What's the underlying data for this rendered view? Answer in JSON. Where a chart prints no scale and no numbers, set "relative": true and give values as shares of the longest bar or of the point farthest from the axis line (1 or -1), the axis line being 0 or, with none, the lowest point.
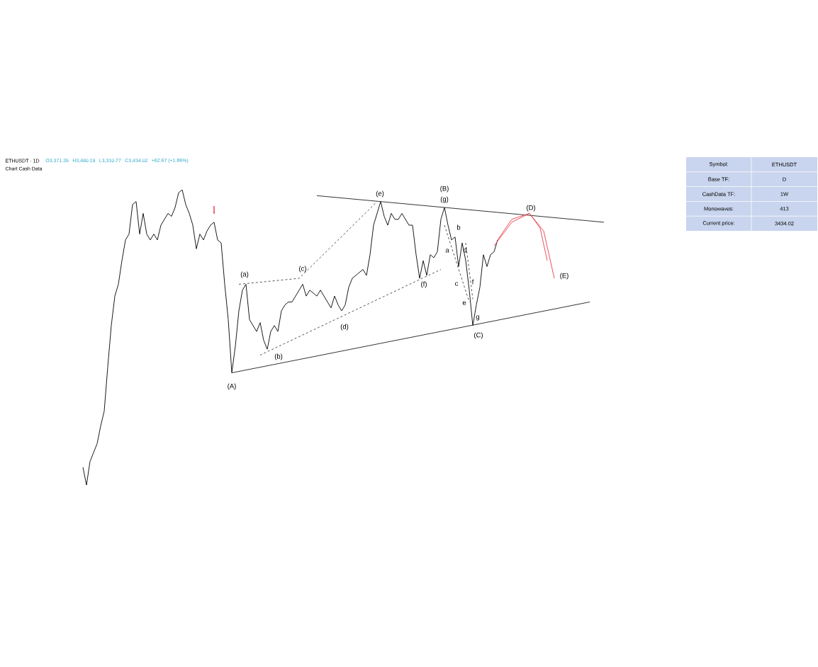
{
  "chart_data": {
    "type": "line",
    "relative": true,
    "title": "ETHUSDT · 1D",
    "subtitle": "Chart Cash Data",
    "categories": [
      null,
      null,
      null,
      null,
      null,
      null,
      null,
      null,
      null,
      null,
      null,
      null,
      null,
      null,
      null,
      null,
      null,
      null,
      null,
      null,
      null,
      null,
      null,
      null,
      null,
      null,
      null,
      null,
      null,
      null,
      null,
      null,
      null,
      null,
      null,
      null,
      null,
      null,
      null,
      null,
      null,
      null,
      null,
      null,
      null,
      null,
      null,
      null,
      null,
      null,
      null,
      null,
      null,
      null,
      null,
      null,
      null,
      null,
      null,
      null,
      null,
      null,
      null,
      null,
      null,
      null,
      null,
      null,
      null,
      null,
      null,
      null,
      null,
      null,
      null,
      null,
      null,
      null,
      null,
      null,
      null,
      null,
      null,
      null,
      null,
      null,
      null,
      null,
      null,
      null,
      null,
      null,
      null,
      null,
      null,
      null,
      null,
      null,
      null,
      null,
      null,
      null,
      null,
      null,
      null,
      null,
      null,
      null,
      null,
      null,
      null,
      null,
      null,
      null,
      null,
      null,
      null,
      null,
      null,
      null,
      null,
      null,
      null,
      null,
      null,
      null,
      null,
      null,
      null,
      null,
      null,
      null,
      null,
      null,
      null,
      null,
      null,
      null,
      null,
      null,
      null,
      null,
      null,
      null,
      null,
      null,
      null,
      null
    ],
    "series": [
      {
        "color": "#1a1a1a",
        "values": [
          0.06,
          0,
          0.08,
          0.11,
          0.14,
          0.2,
          0.25,
          0.4,
          0.54,
          0.64,
          0.68,
          0.76,
          0.83,
          0.85,
          0.95,
          0.96,
          0.85,
          0.92,
          0.85,
          0.83,
          0.85,
          0.83,
          0.88,
          0.9,
          0.92,
          0.91,
          0.94,
          0.99,
          1,
          0.95,
          0.92,
          0.88,
          0.8,
          0.85,
          0.83,
          0.86,
          0.88,
          0.89,
          0.83,
          0.82,
          0.68,
          0.56,
          0.38,
          0.47,
          0.59,
          0.66,
          0.68,
          0.56,
          0.54,
          0.52,
          0.55,
          0.49,
          0.46,
          0.52,
          0.54,
          0.52,
          0.59,
          0.61,
          0.62,
          0.62,
          0.64,
          0.66,
          0.68,
          0.64,
          0.66,
          0.65,
          0.64,
          0.66,
          0.64,
          0.62,
          0.6,
          0.64,
          0.61,
          0.59,
          0.61,
          0.67,
          0.7,
          0.71,
          0.72,
          0.73,
          0.71,
          0.78,
          0.88,
          0.92,
          0.96,
          0.91,
          0.88,
          0.92,
          0.9,
          0.9,
          0.92,
          0.9,
          0.88,
          0.88,
          0.78,
          0.7,
          0.76,
          0.71,
          0.78,
          0.77,
          0.79,
          0.9,
          0.94,
          0.88,
          0.83,
          0.84,
          0.74,
          0.82,
          0.76,
          0.66,
          0.54,
          0.61,
          0.67,
          0.78,
          0.74,
          0.78,
          0.79,
          0.83,
          null,
          null,
          null,
          null,
          null,
          null,
          null,
          null,
          null,
          null,
          null,
          null,
          null,
          null,
          null,
          null,
          null,
          null,
          null,
          null,
          null,
          null,
          null,
          null,
          null,
          null,
          null,
          null,
          null,
          null
        ]
      },
      {
        "type": "line",
        "color": "#333333",
        "values": [
          null,
          null,
          null,
          null,
          null,
          null,
          null,
          null,
          null,
          null,
          null,
          null,
          null,
          null,
          null,
          null,
          null,
          null,
          null,
          null,
          null,
          null,
          null,
          null,
          null,
          null,
          null,
          null,
          null,
          null,
          null,
          null,
          null,
          null,
          null,
          null,
          null,
          null,
          null,
          null,
          null,
          null,
          null,
          null,
          null,
          null,
          null,
          null,
          null,
          null,
          null,
          null,
          null,
          null,
          null,
          null,
          null,
          null,
          null,
          null,
          null,
          null,
          null,
          null,
          null,
          null,
          0.98,
          null,
          null,
          null,
          null,
          null,
          null,
          null,
          null,
          null,
          null,
          null,
          null,
          null,
          null,
          null,
          null,
          null,
          null,
          null,
          null,
          null,
          null,
          null,
          null,
          null,
          null,
          null,
          null,
          null,
          null,
          null,
          null,
          null,
          null,
          null,
          null,
          null,
          null,
          null,
          null,
          null,
          null,
          null,
          null,
          null,
          null,
          null,
          null,
          null,
          null,
          null,
          null,
          null,
          null,
          null,
          null,
          null,
          null,
          null,
          null,
          null,
          null,
          null,
          null,
          null,
          null,
          null,
          null,
          null,
          null,
          null,
          null,
          null,
          null,
          null,
          null,
          null,
          null,
          null,
          null,
          0.89
        ]
      },
      {
        "type": "line",
        "color": "#333333",
        "values": [
          null,
          null,
          null,
          null,
          null,
          null,
          null,
          null,
          null,
          null,
          null,
          null,
          null,
          null,
          null,
          null,
          null,
          null,
          null,
          null,
          null,
          null,
          null,
          null,
          null,
          null,
          null,
          null,
          null,
          null,
          null,
          null,
          null,
          null,
          null,
          null,
          null,
          null,
          null,
          null,
          null,
          null,
          0.38,
          null,
          null,
          null,
          null,
          null,
          null,
          null,
          null,
          null,
          null,
          null,
          null,
          null,
          null,
          null,
          null,
          null,
          null,
          null,
          null,
          null,
          null,
          null,
          null,
          null,
          null,
          null,
          null,
          null,
          null,
          null,
          null,
          null,
          null,
          null,
          null,
          null,
          null,
          null,
          null,
          null,
          null,
          null,
          null,
          null,
          null,
          null,
          null,
          null,
          null,
          null,
          null,
          null,
          null,
          null,
          null,
          null,
          null,
          null,
          null,
          null,
          null,
          null,
          null,
          null,
          null,
          null,
          null,
          null,
          null,
          null,
          null,
          null,
          null,
          null,
          null,
          null,
          null,
          null,
          null,
          null,
          null,
          null,
          null,
          null,
          null,
          null,
          null,
          null,
          null,
          null,
          null,
          null,
          null,
          null,
          null,
          null,
          null,
          null,
          null,
          0.62,
          null,
          null,
          null,
          null
        ]
      },
      {
        "type": "line",
        "color": "#555555",
        "line_style": "dashed",
        "values": [
          null,
          null,
          null,
          null,
          null,
          null,
          null,
          null,
          null,
          null,
          null,
          null,
          null,
          null,
          null,
          null,
          null,
          null,
          null,
          null,
          null,
          null,
          null,
          null,
          null,
          null,
          null,
          null,
          null,
          null,
          null,
          null,
          null,
          null,
          null,
          null,
          null,
          null,
          null,
          null,
          null,
          null,
          null,
          null,
          0.68,
          null,
          null,
          null,
          null,
          null,
          null,
          null,
          null,
          null,
          null,
          null,
          null,
          null,
          null,
          null,
          null,
          0.7,
          null,
          null,
          null,
          null,
          null,
          null,
          null,
          null,
          null,
          null,
          null,
          null,
          null,
          null,
          null,
          null,
          null,
          null,
          null,
          null,
          null,
          0.96,
          null,
          null,
          null,
          null,
          null,
          null,
          null,
          null,
          null,
          null,
          null,
          null,
          null,
          null,
          null,
          null,
          null,
          null,
          null,
          null,
          null,
          null,
          null,
          null,
          null,
          null,
          null,
          null,
          null,
          null,
          null,
          null,
          null,
          null,
          null,
          null,
          null,
          null,
          null,
          null,
          null,
          null,
          null,
          null,
          null,
          null,
          null,
          null,
          null,
          null,
          null,
          null,
          null,
          null,
          null,
          null,
          null,
          null,
          null,
          null,
          null,
          null,
          null,
          null
        ]
      },
      {
        "type": "line",
        "color": "#555555",
        "line_style": "dashed",
        "values": [
          null,
          null,
          null,
          null,
          null,
          null,
          null,
          null,
          null,
          null,
          null,
          null,
          null,
          null,
          null,
          null,
          null,
          null,
          null,
          null,
          null,
          null,
          null,
          null,
          null,
          null,
          null,
          null,
          null,
          null,
          null,
          null,
          null,
          null,
          null,
          null,
          null,
          null,
          null,
          null,
          null,
          null,
          null,
          null,
          null,
          null,
          null,
          null,
          null,
          null,
          0.44,
          null,
          null,
          null,
          null,
          null,
          null,
          null,
          null,
          null,
          null,
          null,
          null,
          null,
          null,
          null,
          null,
          null,
          null,
          null,
          null,
          null,
          null,
          null,
          null,
          null,
          null,
          null,
          null,
          null,
          null,
          null,
          null,
          null,
          null,
          null,
          null,
          null,
          null,
          null,
          null,
          null,
          null,
          null,
          null,
          null,
          null,
          null,
          null,
          null,
          null,
          0.73,
          null,
          null,
          null,
          null,
          null,
          null,
          null,
          null,
          null,
          null,
          null,
          null,
          null,
          null,
          null,
          null,
          null,
          null,
          null,
          null,
          null,
          null,
          null,
          null,
          null,
          null,
          null,
          null,
          null,
          null,
          null,
          null,
          null,
          null,
          null,
          null,
          null,
          null,
          null,
          null,
          null,
          null,
          null,
          null,
          null,
          null
        ]
      },
      {
        "type": "line",
        "color": "#555555",
        "line_style": "dashed",
        "values": [
          null,
          null,
          null,
          null,
          null,
          null,
          null,
          null,
          null,
          null,
          null,
          null,
          null,
          null,
          null,
          null,
          null,
          null,
          null,
          null,
          null,
          null,
          null,
          null,
          null,
          null,
          null,
          null,
          null,
          null,
          null,
          null,
          null,
          null,
          null,
          null,
          null,
          null,
          null,
          null,
          null,
          null,
          null,
          null,
          null,
          null,
          null,
          null,
          null,
          null,
          null,
          null,
          null,
          null,
          null,
          null,
          null,
          null,
          null,
          null,
          null,
          null,
          null,
          null,
          null,
          null,
          null,
          null,
          null,
          null,
          null,
          null,
          null,
          null,
          null,
          null,
          null,
          null,
          null,
          null,
          null,
          null,
          null,
          null,
          null,
          null,
          null,
          null,
          null,
          null,
          null,
          null,
          null,
          null,
          null,
          null,
          null,
          null,
          null,
          null,
          null,
          null,
          0.88,
          null,
          null,
          null,
          null,
          null,
          null,
          0.62,
          null,
          null,
          null,
          null,
          null,
          null,
          null,
          null,
          null,
          null,
          null,
          null,
          null,
          null,
          null,
          null,
          null,
          null,
          null,
          null,
          null,
          null,
          null,
          null,
          null,
          null,
          null,
          null,
          null,
          null,
          null,
          null,
          null,
          null,
          null,
          null,
          null,
          null
        ]
      },
      {
        "type": "line",
        "color": "#555555",
        "line_style": "dashed",
        "values": [
          null,
          null,
          null,
          null,
          null,
          null,
          null,
          null,
          null,
          null,
          null,
          null,
          null,
          null,
          null,
          null,
          null,
          null,
          null,
          null,
          null,
          null,
          null,
          null,
          null,
          null,
          null,
          null,
          null,
          null,
          null,
          null,
          null,
          null,
          null,
          null,
          null,
          null,
          null,
          null,
          null,
          null,
          null,
          null,
          null,
          null,
          null,
          null,
          null,
          null,
          null,
          null,
          null,
          null,
          null,
          null,
          null,
          null,
          null,
          null,
          null,
          null,
          null,
          null,
          null,
          null,
          null,
          null,
          null,
          null,
          null,
          null,
          null,
          null,
          null,
          null,
          null,
          null,
          null,
          null,
          null,
          null,
          null,
          null,
          null,
          null,
          null,
          null,
          null,
          null,
          null,
          null,
          null,
          null,
          null,
          null,
          null,
          null,
          null,
          null,
          null,
          null,
          null,
          null,
          null,
          null,
          null,
          null,
          0.82,
          null,
          0.63,
          null,
          null,
          null,
          null,
          null,
          null,
          null,
          null,
          null,
          null,
          null,
          null,
          null,
          null,
          null,
          null,
          null,
          null,
          null,
          null,
          null,
          null,
          null,
          null,
          null,
          null,
          null,
          null,
          null,
          null,
          null,
          null,
          null,
          null,
          null,
          null,
          null
        ]
      },
      {
        "type": "line",
        "color": "#e8505b",
        "values": [
          null,
          null,
          null,
          null,
          null,
          null,
          null,
          null,
          null,
          null,
          null,
          null,
          null,
          null,
          null,
          null,
          null,
          null,
          null,
          null,
          null,
          null,
          null,
          null,
          null,
          null,
          null,
          null,
          null,
          null,
          null,
          null,
          null,
          null,
          null,
          null,
          null,
          null,
          null,
          null,
          null,
          null,
          null,
          null,
          null,
          null,
          null,
          null,
          null,
          null,
          null,
          null,
          null,
          null,
          null,
          null,
          null,
          null,
          null,
          null,
          null,
          null,
          null,
          null,
          null,
          null,
          null,
          null,
          null,
          null,
          null,
          null,
          null,
          null,
          null,
          null,
          null,
          null,
          null,
          null,
          null,
          null,
          null,
          null,
          null,
          null,
          null,
          null,
          null,
          null,
          null,
          null,
          null,
          null,
          null,
          null,
          null,
          null,
          null,
          null,
          null,
          null,
          null,
          null,
          null,
          null,
          null,
          null,
          null,
          null,
          null,
          null,
          null,
          null,
          null,
          null,
          null,
          0.83,
          null,
          null,
          null,
          0.9,
          null,
          null,
          null,
          null,
          0.92,
          null,
          null,
          null,
          0.86,
          null,
          null,
          0.7,
          null,
          null,
          null,
          null,
          null,
          null,
          null,
          null,
          null,
          null,
          null,
          null,
          null,
          null
        ]
      },
      {
        "type": "line",
        "color": "#e8505b",
        "values": [
          null,
          null,
          null,
          null,
          null,
          null,
          null,
          null,
          null,
          null,
          null,
          null,
          null,
          null,
          null,
          null,
          null,
          null,
          null,
          null,
          null,
          null,
          null,
          null,
          null,
          null,
          null,
          null,
          null,
          null,
          null,
          null,
          null,
          null,
          null,
          null,
          null,
          null,
          null,
          null,
          null,
          null,
          null,
          null,
          null,
          null,
          null,
          null,
          null,
          null,
          null,
          null,
          null,
          null,
          null,
          null,
          null,
          null,
          null,
          null,
          null,
          null,
          null,
          null,
          null,
          null,
          null,
          null,
          null,
          null,
          null,
          null,
          null,
          null,
          null,
          null,
          null,
          null,
          null,
          null,
          null,
          null,
          null,
          null,
          null,
          null,
          null,
          null,
          null,
          null,
          null,
          null,
          null,
          null,
          null,
          null,
          null,
          null,
          null,
          null,
          null,
          null,
          null,
          null,
          null,
          null,
          null,
          null,
          null,
          null,
          null,
          null,
          null,
          null,
          null,
          null,
          0.81,
          null,
          null,
          null,
          null,
          0.89,
          null,
          null,
          null,
          null,
          0.92,
          null,
          null,
          0.87,
          null,
          0.76,
          null,
          null,
          null,
          null,
          null,
          null,
          null,
          null,
          null,
          null,
          null,
          null,
          null,
          null,
          null,
          null
        ]
      }
    ],
    "annotations": [
      "(a)",
      "(b)",
      "(c)",
      "(d)",
      "(e)",
      "(f)",
      "(g)",
      "(B)",
      "(A)",
      "(C)",
      "(D)",
      "(E)",
      "a",
      "b",
      "c",
      "d",
      "e",
      "f",
      "g",
      "O3,371.35",
      "H3,480.19",
      "L3,310.77",
      "C3,434.02",
      "+62.67 (+1.86%)",
      "Symbol:",
      "ETHUSDT",
      "Base TF:",
      "D",
      "CashData TF:",
      "1W",
      "Monowaves:",
      "413",
      "Current price:",
      "3434.02"
    ]
  }
}
